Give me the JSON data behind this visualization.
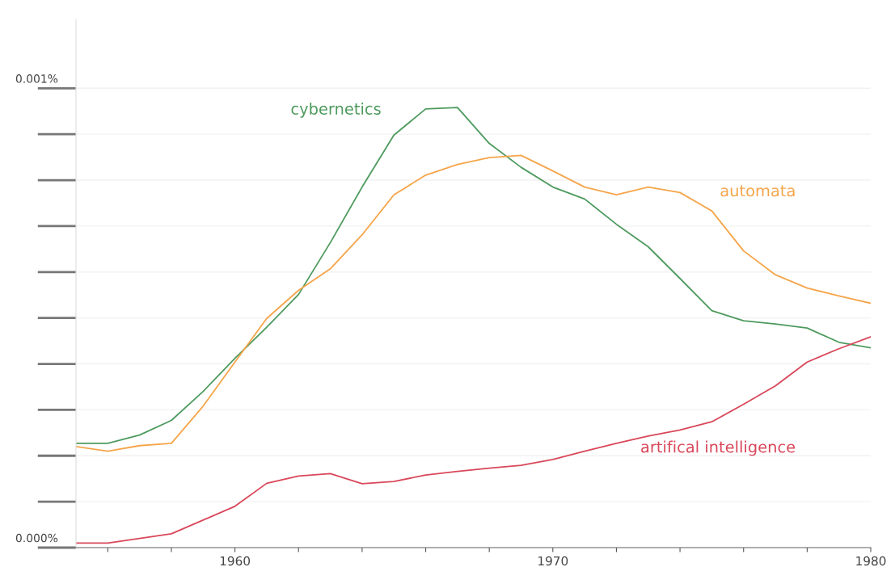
{
  "chart_data": {
    "type": "line",
    "x": [
      1955,
      1956,
      1957,
      1958,
      1959,
      1960,
      1961,
      1962,
      1963,
      1964,
      1965,
      1966,
      1967,
      1968,
      1969,
      1970,
      1971,
      1972,
      1973,
      1974,
      1975,
      1976,
      1977,
      1978,
      1979,
      1980
    ],
    "series": [
      {
        "name": "cybernetics",
        "color": "#4e9a5e",
        "values": [
          0.000227,
          0.000227,
          0.000245,
          0.000277,
          0.00034,
          0.000412,
          0.00048,
          0.000551,
          0.000664,
          0.000785,
          0.000898,
          0.000955,
          0.000958,
          0.00088,
          0.000828,
          0.000785,
          0.000759,
          0.000704,
          0.000655,
          0.000586,
          0.000516,
          0.000494,
          0.000487,
          0.000478,
          0.000447,
          0.000435
        ]
      },
      {
        "name": "automata",
        "color": "#f5a54a",
        "values": [
          0.00022,
          0.00021,
          0.000222,
          0.000227,
          0.000308,
          0.000404,
          0.000499,
          0.00056,
          0.000607,
          0.000681,
          0.000768,
          0.000811,
          0.000834,
          0.000849,
          0.000854,
          0.00082,
          0.000785,
          0.000768,
          0.000785,
          0.000773,
          0.000733,
          0.000646,
          0.000594,
          0.000565,
          0.000548,
          0.000532
        ]
      },
      {
        "name": "artifical intelligence",
        "color": "#d9475a",
        "values": [
          1e-05,
          1e-05,
          2e-05,
          3e-05,
          6e-05,
          9e-05,
          0.00014,
          0.000156,
          0.000161,
          0.000139,
          0.000144,
          0.000158,
          0.000166,
          0.000173,
          0.000179,
          0.000192,
          0.00021,
          0.000227,
          0.000243,
          0.000256,
          0.000274,
          0.000312,
          0.000352,
          0.000404,
          0.000433,
          0.000459
        ]
      }
    ],
    "xlim": [
      1955,
      1980
    ],
    "xticks": [
      {
        "value": 1956,
        "label": null
      },
      {
        "value": 1958,
        "label": null
      },
      1960,
      {
        "value": 1962,
        "label": null
      },
      {
        "value": 1964,
        "label": null
      },
      {
        "value": 1966,
        "label": null
      },
      {
        "value": 1968,
        "label": null
      },
      1970,
      {
        "value": 1972,
        "label": null
      },
      {
        "value": 1974,
        "label": null
      },
      {
        "value": 1976,
        "label": null
      },
      {
        "value": 1978,
        "label": null
      },
      1980
    ],
    "ylim": [
      0,
      0.00115
    ],
    "yticks": [
      {
        "value": 0,
        "label": "0.000%"
      },
      {
        "value": 0.0001,
        "label": null
      },
      {
        "value": 0.0002,
        "label": null
      },
      {
        "value": 0.0003,
        "label": null
      },
      {
        "value": 0.0004,
        "label": null
      },
      {
        "value": 0.0005,
        "label": null
      },
      {
        "value": 0.0006,
        "label": null
      },
      {
        "value": 0.0007,
        "label": null
      },
      {
        "value": 0.0008,
        "label": null
      },
      {
        "value": 0.0009,
        "label": null
      },
      {
        "value": 0.001,
        "label": "0.001%"
      }
    ],
    "grid": "y",
    "legend": false,
    "marker": "none",
    "line_style": "solid"
  }
}
